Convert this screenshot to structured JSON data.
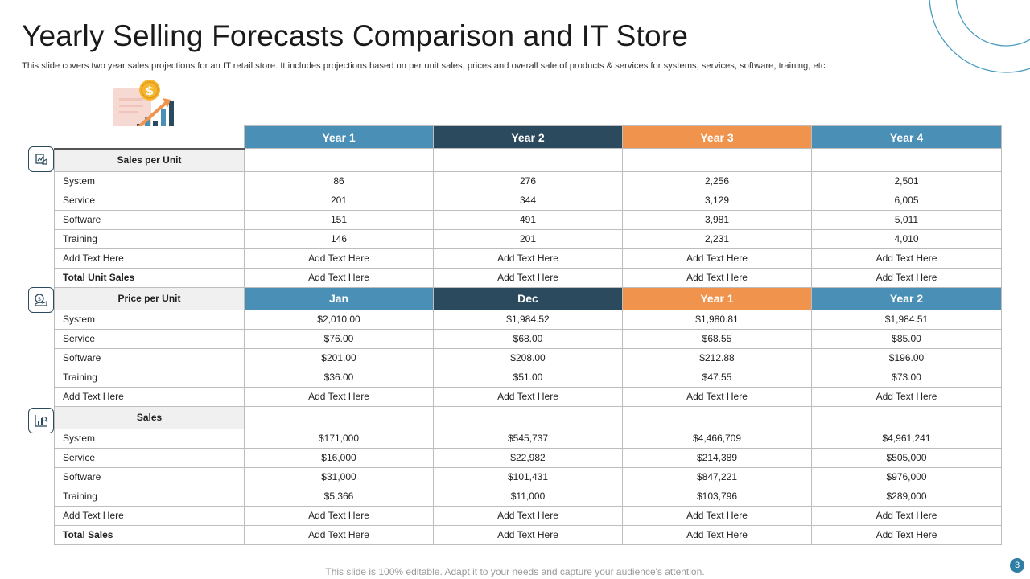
{
  "header": {
    "title": "Yearly Selling Forecasts Comparison and IT Store",
    "subtitle": "This slide covers two year sales projections for an IT retail store. It includes projections based on per unit sales, prices and overall sale of products & services for systems, services, software, training, etc."
  },
  "colors": {
    "blue": "#4a8fb6",
    "navy": "#2c4a5e",
    "orange": "#f0944d",
    "accent": "#2e7fa3"
  },
  "icons": [
    "money-chart-icon",
    "sales-icon",
    "price-icon",
    "analytics-icon"
  ],
  "table": {
    "header_row": [
      "Year 1",
      "Year 2",
      "Year 3",
      "Year 4"
    ],
    "sales_per_unit": {
      "label": "Sales per Unit",
      "rows": [
        {
          "label": "System",
          "values": [
            "86",
            "276",
            "2,256",
            "2,501"
          ]
        },
        {
          "label": "Service",
          "values": [
            "201",
            "344",
            "3,129",
            "6,005"
          ]
        },
        {
          "label": "Software",
          "values": [
            "151",
            "491",
            "3,981",
            "5,011"
          ]
        },
        {
          "label": "Training",
          "values": [
            "146",
            "201",
            "2,231",
            "4,010"
          ]
        },
        {
          "label": "Add Text Here",
          "values": [
            "Add Text Here",
            "Add Text Here",
            "Add Text Here",
            "Add Text Here"
          ]
        },
        {
          "label": "Total Unit Sales",
          "values": [
            "Add Text Here",
            "Add Text Here",
            "Add Text Here",
            "Add Text Here"
          ]
        }
      ]
    },
    "price_per_unit": {
      "label": "Price per Unit",
      "headers": [
        "Jan",
        "Dec",
        "Year 1",
        "Year 2"
      ],
      "rows": [
        {
          "label": "System",
          "values": [
            "$2,010.00",
            "$1,984.52",
            "$1,980.81",
            "$1,984.51"
          ]
        },
        {
          "label": "Service",
          "values": [
            "$76.00",
            "$68.00",
            "$68.55",
            "$85.00"
          ]
        },
        {
          "label": "Software",
          "values": [
            "$201.00",
            "$208.00",
            "$212.88",
            "$196.00"
          ]
        },
        {
          "label": "Training",
          "values": [
            "$36.00",
            "$51.00",
            "$47.55",
            "$73.00"
          ]
        },
        {
          "label": "Add Text Here",
          "values": [
            "Add Text Here",
            "Add Text Here",
            "Add Text Here",
            "Add Text Here"
          ]
        }
      ]
    },
    "sales": {
      "label": "Sales",
      "rows": [
        {
          "label": "System",
          "values": [
            "$171,000",
            "$545,737",
            "$4,466,709",
            "$4,961,241"
          ]
        },
        {
          "label": "Service",
          "values": [
            "$16,000",
            "$22,982",
            "$214,389",
            "$505,000"
          ]
        },
        {
          "label": "Software",
          "values": [
            "$31,000",
            "$101,431",
            "$847,221",
            "$976,000"
          ]
        },
        {
          "label": "Training",
          "values": [
            "$5,366",
            "$11,000",
            "$103,796",
            "$289,000"
          ]
        },
        {
          "label": "Add Text Here",
          "values": [
            "Add Text Here",
            "Add Text Here",
            "Add Text Here",
            "Add Text Here"
          ]
        },
        {
          "label": "Total Sales",
          "values": [
            "Add Text Here",
            "Add Text Here",
            "Add Text Here",
            "Add Text Here"
          ]
        }
      ]
    }
  },
  "footer": {
    "note": "This slide is 100% editable. Adapt it to your needs and capture your audience's attention.",
    "page_number": "3"
  }
}
